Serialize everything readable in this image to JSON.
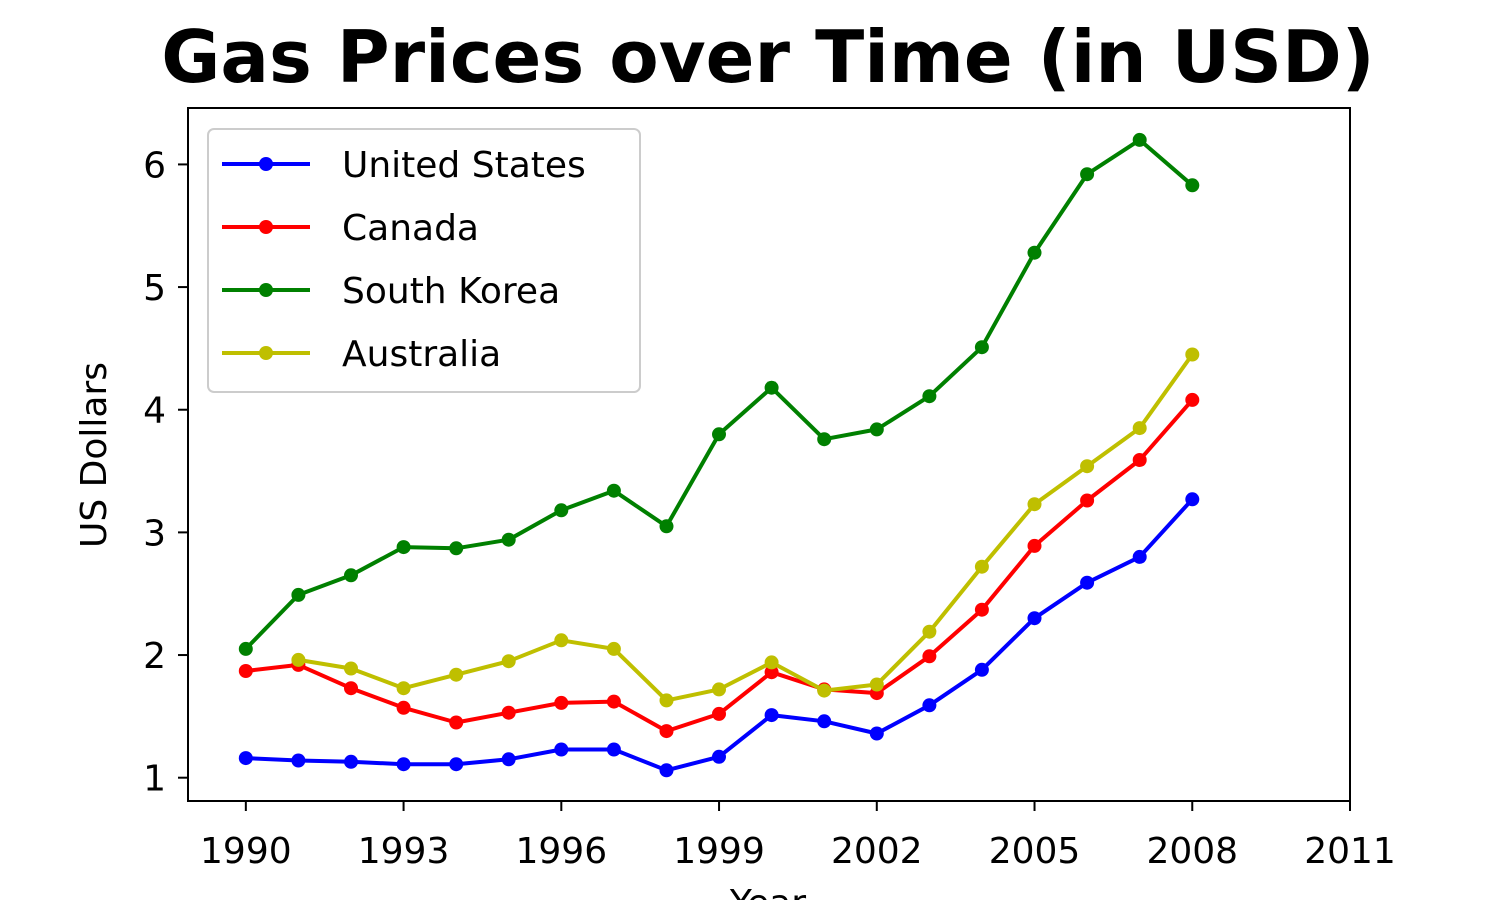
{
  "chart_data": {
    "type": "line",
    "title": "Gas Prices over Time (in USD)",
    "xlabel": "Year",
    "ylabel": "US Dollars",
    "x": [
      1990,
      1991,
      1992,
      1993,
      1994,
      1995,
      1996,
      1997,
      1998,
      1999,
      2000,
      2001,
      2002,
      2003,
      2004,
      2005,
      2006,
      2007,
      2008
    ],
    "xlim": [
      1988.9,
      2011
    ],
    "ylim": [
      0.81,
      6.46
    ],
    "xticks": [
      1990,
      1993,
      1996,
      1999,
      2002,
      2005,
      2008,
      2011
    ],
    "yticks": [
      1,
      2,
      3,
      4,
      5,
      6
    ],
    "grid": false,
    "legend_position": "upper-left",
    "series": [
      {
        "name": "United States",
        "color": "#0000ff",
        "marker": "dot",
        "values": [
          1.16,
          1.14,
          1.13,
          1.11,
          1.11,
          1.15,
          1.23,
          1.23,
          1.06,
          1.17,
          1.51,
          1.46,
          1.36,
          1.59,
          1.88,
          2.3,
          2.59,
          2.8,
          3.27
        ]
      },
      {
        "name": "Canada",
        "color": "#ff0000",
        "marker": "dot",
        "values": [
          1.87,
          1.92,
          1.73,
          1.57,
          1.45,
          1.53,
          1.61,
          1.62,
          1.38,
          1.52,
          1.86,
          1.72,
          1.69,
          1.99,
          2.37,
          2.89,
          3.26,
          3.59,
          4.08
        ]
      },
      {
        "name": "South Korea",
        "color": "#008000",
        "marker": "dot",
        "values": [
          2.05,
          2.49,
          2.65,
          2.88,
          2.87,
          2.94,
          3.18,
          3.34,
          3.05,
          3.8,
          4.18,
          3.76,
          3.84,
          4.11,
          4.51,
          5.28,
          5.92,
          6.2,
          5.83
        ]
      },
      {
        "name": "Australia",
        "color": "#bfbf00",
        "marker": "dot",
        "values": [
          null,
          1.96,
          1.89,
          1.73,
          1.84,
          1.95,
          2.12,
          2.05,
          1.63,
          1.72,
          1.94,
          1.71,
          1.76,
          2.19,
          2.72,
          3.23,
          3.54,
          3.85,
          4.45
        ]
      }
    ]
  }
}
